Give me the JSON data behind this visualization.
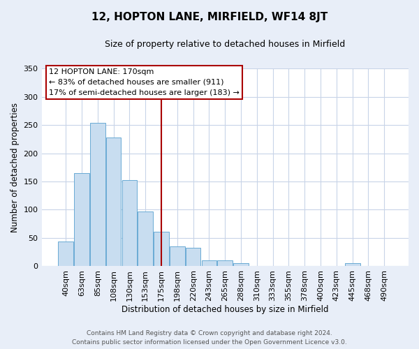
{
  "title": "12, HOPTON LANE, MIRFIELD, WF14 8JT",
  "subtitle": "Size of property relative to detached houses in Mirfield",
  "xlabel": "Distribution of detached houses by size in Mirfield",
  "ylabel": "Number of detached properties",
  "bar_labels": [
    "40sqm",
    "63sqm",
    "85sqm",
    "108sqm",
    "130sqm",
    "153sqm",
    "175sqm",
    "198sqm",
    "220sqm",
    "243sqm",
    "265sqm",
    "288sqm",
    "310sqm",
    "333sqm",
    "355sqm",
    "378sqm",
    "400sqm",
    "423sqm",
    "445sqm",
    "468sqm",
    "490sqm"
  ],
  "bar_values": [
    44,
    165,
    254,
    228,
    153,
    97,
    61,
    35,
    33,
    11,
    10,
    5,
    1,
    1,
    0,
    0,
    1,
    0,
    5,
    1,
    1
  ],
  "bar_color": "#c8ddf0",
  "bar_edge_color": "#6aaad4",
  "vline_color": "#aa0000",
  "ylim": [
    0,
    350
  ],
  "yticks": [
    0,
    50,
    100,
    150,
    200,
    250,
    300,
    350
  ],
  "annotation_title": "12 HOPTON LANE: 170sqm",
  "annotation_line1": "← 83% of detached houses are smaller (911)",
  "annotation_line2": "17% of semi-detached houses are larger (183) →",
  "annotation_box_color": "#ffffff",
  "annotation_box_edge": "#aa0000",
  "footer_line1": "Contains HM Land Registry data © Crown copyright and database right 2024.",
  "footer_line2": "Contains public sector information licensed under the Open Government Licence v3.0.",
  "fig_bg_color": "#e8eef8",
  "plot_bg_color": "#ffffff",
  "grid_color": "#c8d4e8"
}
